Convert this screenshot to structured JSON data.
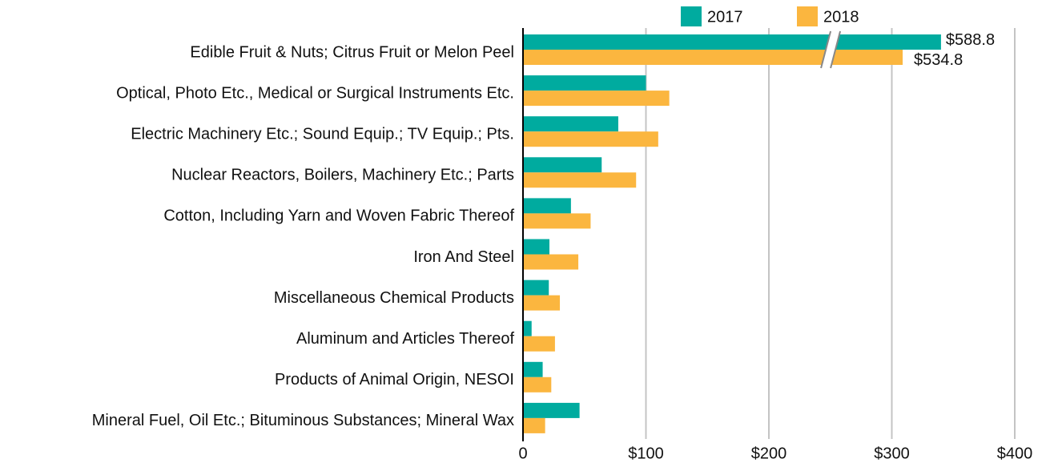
{
  "chart_data": {
    "type": "bar",
    "orientation": "horizontal",
    "categories": [
      "Edible Fruit & Nuts; Citrus Fruit or Melon Peel",
      "Optical, Photo Etc., Medical or Surgical Instruments Etc.",
      "Electric Machinery Etc.; Sound Equip.; TV Equip.; Pts.",
      "Nuclear Reactors, Boilers, Machinery Etc.; Parts",
      "Cotton, Including Yarn and Woven Fabric Thereof",
      "Iron And Steel",
      "Miscellaneous Chemical Products",
      "Aluminum and Articles Thereof",
      "Products of Animal Origin, NESOI",
      "Mineral Fuel, Oil Etc.; Bituminous Substances; Mineral Wax"
    ],
    "series": [
      {
        "name": "2017",
        "color": "#00ab9f",
        "values": [
          588.8,
          100,
          77.5,
          64,
          39,
          21.5,
          21,
          7,
          16,
          46
        ],
        "value_labels": [
          "$588.8",
          null,
          null,
          null,
          null,
          null,
          null,
          null,
          null,
          null
        ]
      },
      {
        "name": "2018",
        "color": "#fbb63f",
        "values": [
          534.8,
          119,
          110,
          92,
          55,
          45,
          30,
          26,
          23,
          18
        ],
        "value_labels": [
          "$534.8",
          null,
          null,
          null,
          null,
          null,
          null,
          null,
          null,
          null
        ]
      }
    ],
    "xlim": [
      0,
      400
    ],
    "xticks": [
      0,
      {
        "value": 100,
        "label": "$100"
      },
      {
        "value": 200,
        "label": "$200"
      },
      {
        "value": 300,
        "label": "$300"
      },
      {
        "value": 400,
        "label": "$400"
      }
    ],
    "grid": true,
    "axis_break": true,
    "legend": "top"
  }
}
